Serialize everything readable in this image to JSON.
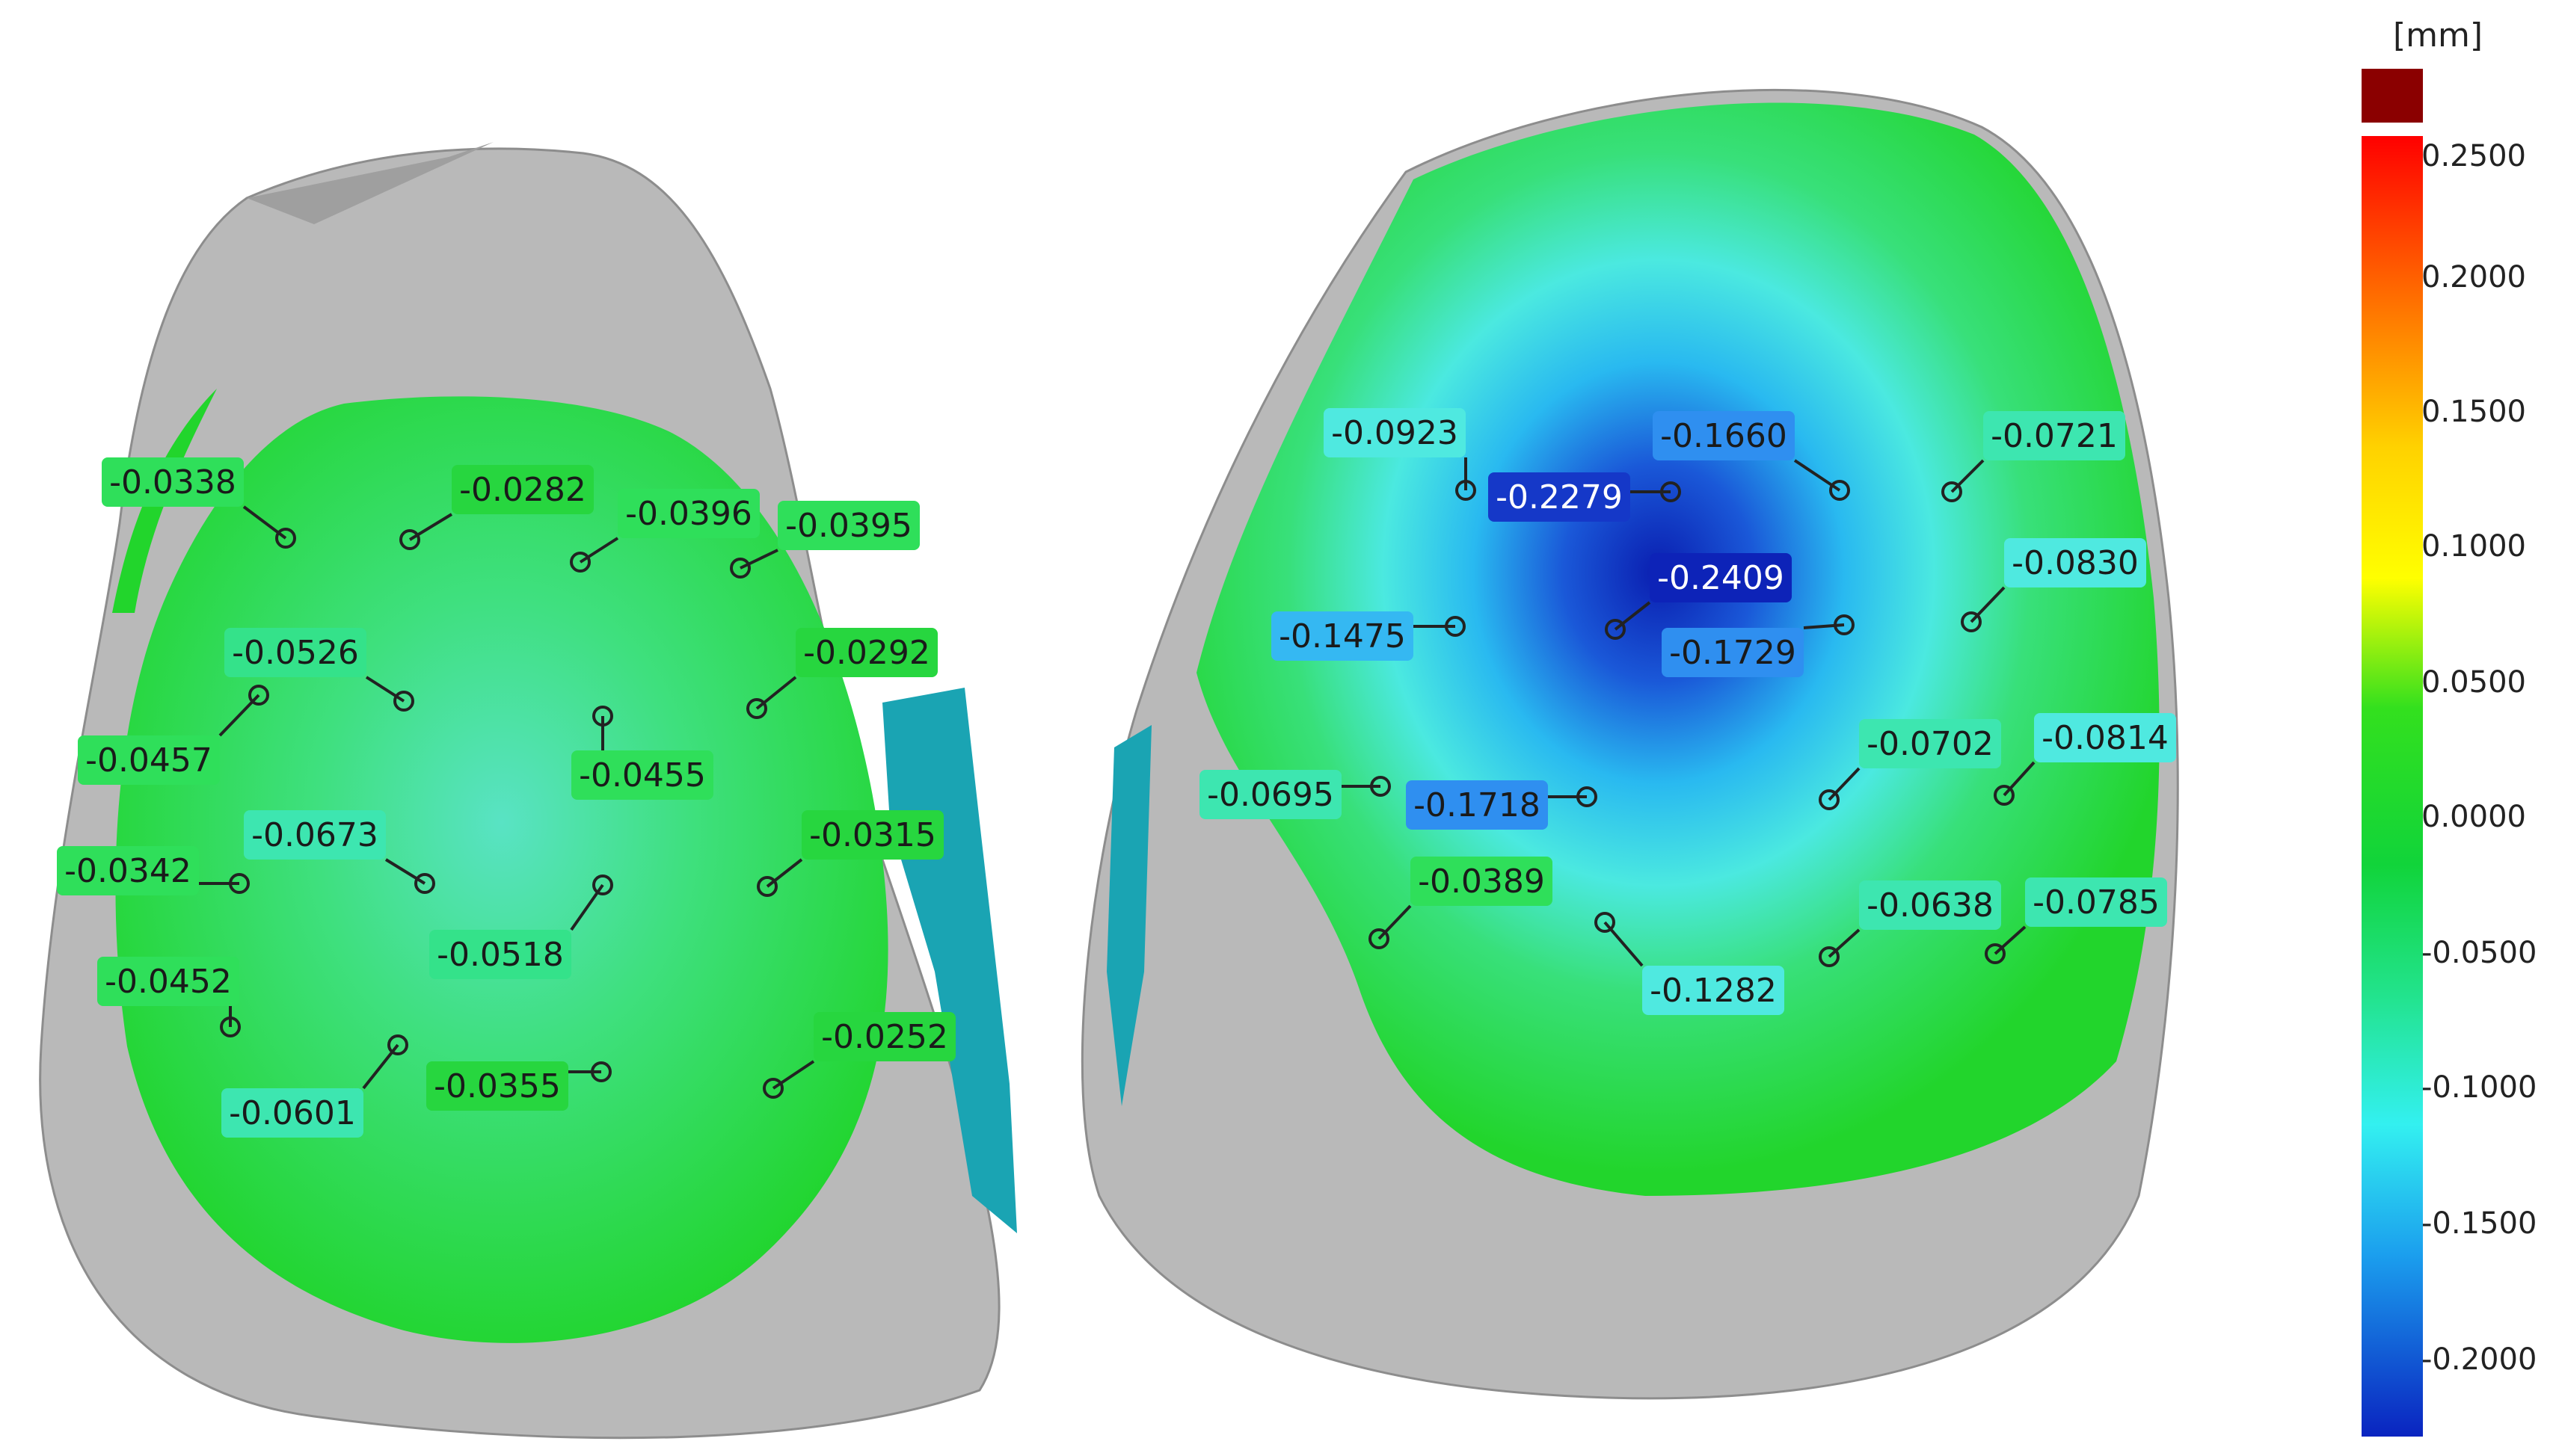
{
  "legend": {
    "unit": "[mm]",
    "ticks": [
      "0.2500",
      "0.2000",
      "0.1500",
      "0.1000",
      "0.0500",
      "0.0000",
      "-0.0500",
      "-0.1000",
      "-0.1500",
      "-0.2000"
    ]
  },
  "left_part": {
    "annotations": [
      {
        "text": "-0.0338",
        "color": "#2fdf5a",
        "dark": false
      },
      {
        "text": "-0.0282",
        "color": "#27d63f",
        "dark": false
      },
      {
        "text": "-0.0396",
        "color": "#2fdf5a",
        "dark": false
      },
      {
        "text": "-0.0395",
        "color": "#2fdf5a",
        "dark": false
      },
      {
        "text": "-0.0526",
        "color": "#34e28a",
        "dark": false
      },
      {
        "text": "-0.0292",
        "color": "#27d63f",
        "dark": false
      },
      {
        "text": "-0.0457",
        "color": "#2fdf5a",
        "dark": false
      },
      {
        "text": "-0.0455",
        "color": "#2fdf5a",
        "dark": false
      },
      {
        "text": "-0.0673",
        "color": "#3de6b0",
        "dark": false
      },
      {
        "text": "-0.0315",
        "color": "#27d63f",
        "dark": false
      },
      {
        "text": "-0.0342",
        "color": "#2fdf5a",
        "dark": false
      },
      {
        "text": "-0.0518",
        "color": "#34e28a",
        "dark": false
      },
      {
        "text": "-0.0452",
        "color": "#2fdf5a",
        "dark": false
      },
      {
        "text": "-0.0252",
        "color": "#27d63f",
        "dark": false
      },
      {
        "text": "-0.0355",
        "color": "#27d63f",
        "dark": false
      },
      {
        "text": "-0.0601",
        "color": "#3de6b0",
        "dark": false
      }
    ]
  },
  "right_part": {
    "annotations": [
      {
        "text": "-0.0923",
        "color": "#4fe9e0",
        "dark": false
      },
      {
        "text": "-0.1660",
        "color": "#2f8ff0",
        "dark": false
      },
      {
        "text": "-0.0721",
        "color": "#3de6b0",
        "dark": false
      },
      {
        "text": "-0.2279",
        "color": "#1538c8",
        "dark": true
      },
      {
        "text": "-0.0830",
        "color": "#4fe9e0",
        "dark": false
      },
      {
        "text": "-0.2409",
        "color": "#0d23b8",
        "dark": true
      },
      {
        "text": "-0.1475",
        "color": "#35b8f2",
        "dark": false
      },
      {
        "text": "-0.1729",
        "color": "#2f8ff0",
        "dark": false
      },
      {
        "text": "-0.0702",
        "color": "#3de6b0",
        "dark": false
      },
      {
        "text": "-0.0814",
        "color": "#4fe9e0",
        "dark": false
      },
      {
        "text": "-0.0695",
        "color": "#3de6b0",
        "dark": false
      },
      {
        "text": "-0.1718",
        "color": "#2f8ff0",
        "dark": false
      },
      {
        "text": "-0.0389",
        "color": "#2fdf5a",
        "dark": false
      },
      {
        "text": "-0.0638",
        "color": "#3de6b0",
        "dark": false
      },
      {
        "text": "-0.0785",
        "color": "#3de6b0",
        "dark": false
      },
      {
        "text": "-0.1282",
        "color": "#4fe9e0",
        "dark": false
      }
    ]
  }
}
